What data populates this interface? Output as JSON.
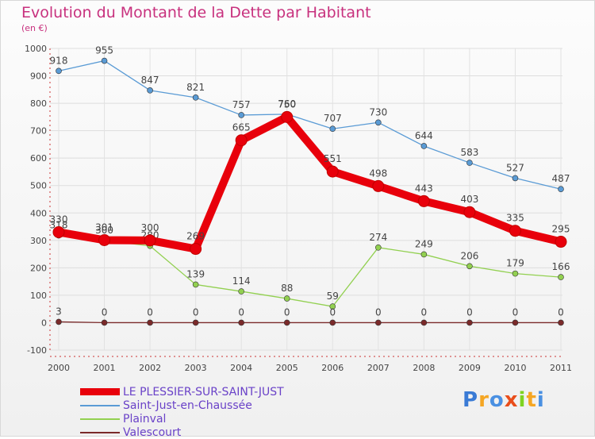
{
  "chart_data": {
    "type": "line",
    "title": "Evolution du Montant de la Dette par Habitant",
    "subtitle": "(en €)",
    "x": [
      "2000",
      "2001",
      "2002",
      "2003",
      "2004",
      "2005",
      "2006",
      "2007",
      "2008",
      "2009",
      "2010",
      "2011"
    ],
    "ylim": [
      -100,
      1000
    ],
    "yticks": [
      "-100",
      "0",
      "100",
      "200",
      "300",
      "400",
      "500",
      "600",
      "700",
      "800",
      "900",
      "1000"
    ],
    "grid": true,
    "legend_position": "bottom-left",
    "series": [
      {
        "name": "LE PLESSIER-SUR-SAINT-JUST",
        "color": "#e8000b",
        "values": [
          330,
          301,
          300,
          269,
          665,
          750,
          551,
          498,
          443,
          403,
          335,
          295
        ]
      },
      {
        "name": "Saint-Just-en-Chaussée",
        "color": "#5a9bd5",
        "values": [
          918,
          955,
          847,
          821,
          757,
          760,
          707,
          730,
          644,
          583,
          527,
          487
        ]
      },
      {
        "name": "Plainval",
        "color": "#92d050",
        "values": [
          318,
          300,
          280,
          139,
          114,
          88,
          59,
          274,
          249,
          206,
          179,
          166
        ]
      },
      {
        "name": "Valescourt",
        "color": "#7b2a2a",
        "values": [
          3,
          0,
          0,
          0,
          0,
          0,
          0,
          0,
          0,
          0,
          0,
          0
        ]
      }
    ]
  },
  "logo": {
    "letters": [
      "P",
      "r",
      "o",
      "x",
      "i",
      "t",
      "i"
    ],
    "colors": [
      "#3a7bd5",
      "#f5a623",
      "#4a90e2",
      "#e94e1b",
      "#7ed321",
      "#f5a623",
      "#4a90e2"
    ]
  }
}
